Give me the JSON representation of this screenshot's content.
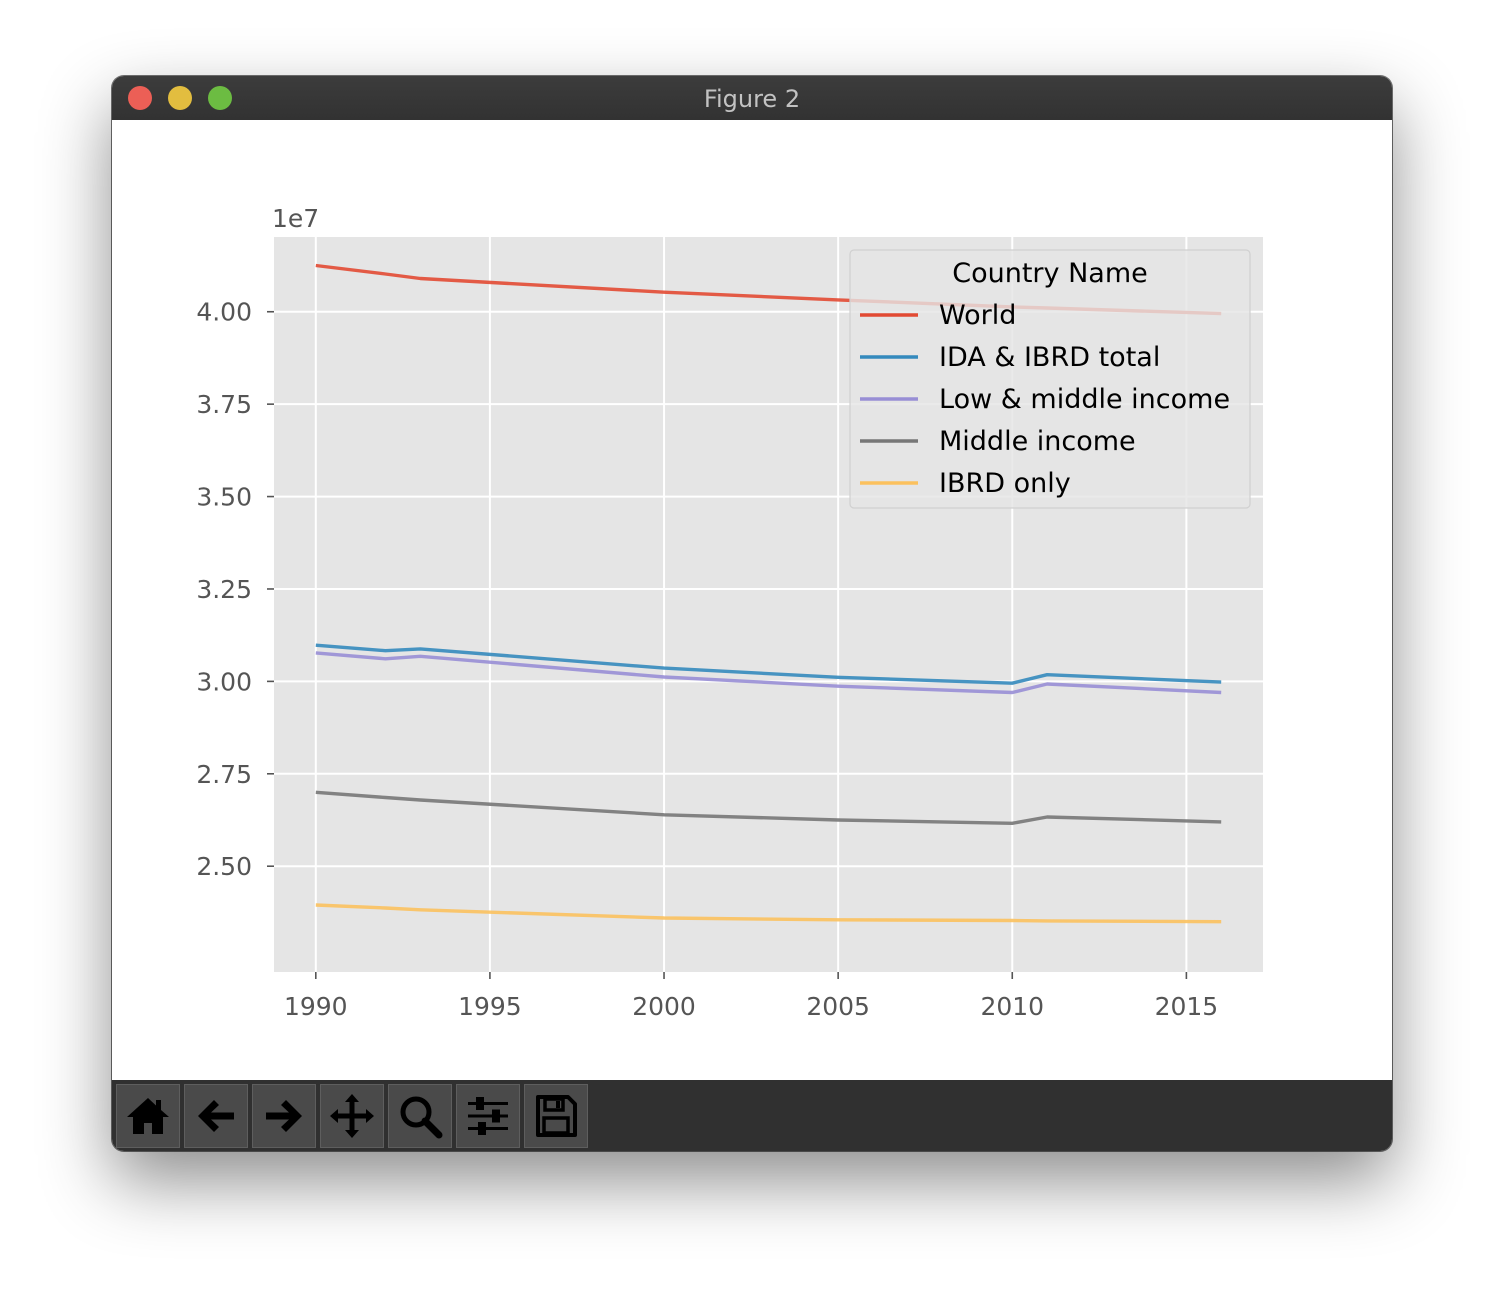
{
  "window": {
    "title": "Figure 2"
  },
  "toolbar": {
    "buttons": [
      {
        "name": "home-icon"
      },
      {
        "name": "back-arrow-icon"
      },
      {
        "name": "forward-arrow-icon"
      },
      {
        "name": "pan-icon"
      },
      {
        "name": "zoom-icon"
      },
      {
        "name": "configure-subplots-icon"
      },
      {
        "name": "save-icon"
      }
    ]
  },
  "chart_data": {
    "type": "line",
    "style": "ggplot",
    "title": "",
    "xlabel": "",
    "ylabel": "",
    "y_offset_label": "1e7",
    "xlim": [
      1988.8,
      2017.2
    ],
    "ylim": [
      2.2138,
      4.2022
    ],
    "xticks": [
      1990,
      1995,
      2000,
      2005,
      2010,
      2015
    ],
    "yticks": [
      2.5,
      2.75,
      3.0,
      3.25,
      3.5,
      3.75,
      4.0
    ],
    "ytick_labels": [
      "2.50",
      "2.75",
      "3.00",
      "3.25",
      "3.50",
      "3.75",
      "4.00"
    ],
    "grid": true,
    "legend": {
      "title": "Country Name",
      "placement": "top-right"
    },
    "x": [
      1990,
      1992,
      1993,
      2000,
      2005,
      2010,
      2011,
      2016
    ],
    "series": [
      {
        "name": "World",
        "color": "#e24a33",
        "values": [
          4.125,
          4.102,
          4.09,
          4.053,
          4.032,
          4.013,
          4.01,
          3.995
        ]
      },
      {
        "name": "IDA & IBRD total",
        "color": "#348abd",
        "values": [
          3.098,
          3.083,
          3.088,
          3.036,
          3.011,
          2.995,
          3.018,
          2.998
        ]
      },
      {
        "name": "Low & middle income",
        "color": "#988ed5",
        "values": [
          3.077,
          3.061,
          3.068,
          3.012,
          2.987,
          2.97,
          2.993,
          2.97
        ]
      },
      {
        "name": "Middle income",
        "color": "#777777",
        "values": [
          2.7,
          2.686,
          2.679,
          2.639,
          2.625,
          2.616,
          2.633,
          2.62
        ]
      },
      {
        "name": "IBRD only",
        "color": "#fbc15e",
        "values": [
          2.395,
          2.387,
          2.382,
          2.36,
          2.355,
          2.353,
          2.352,
          2.35
        ]
      }
    ]
  }
}
